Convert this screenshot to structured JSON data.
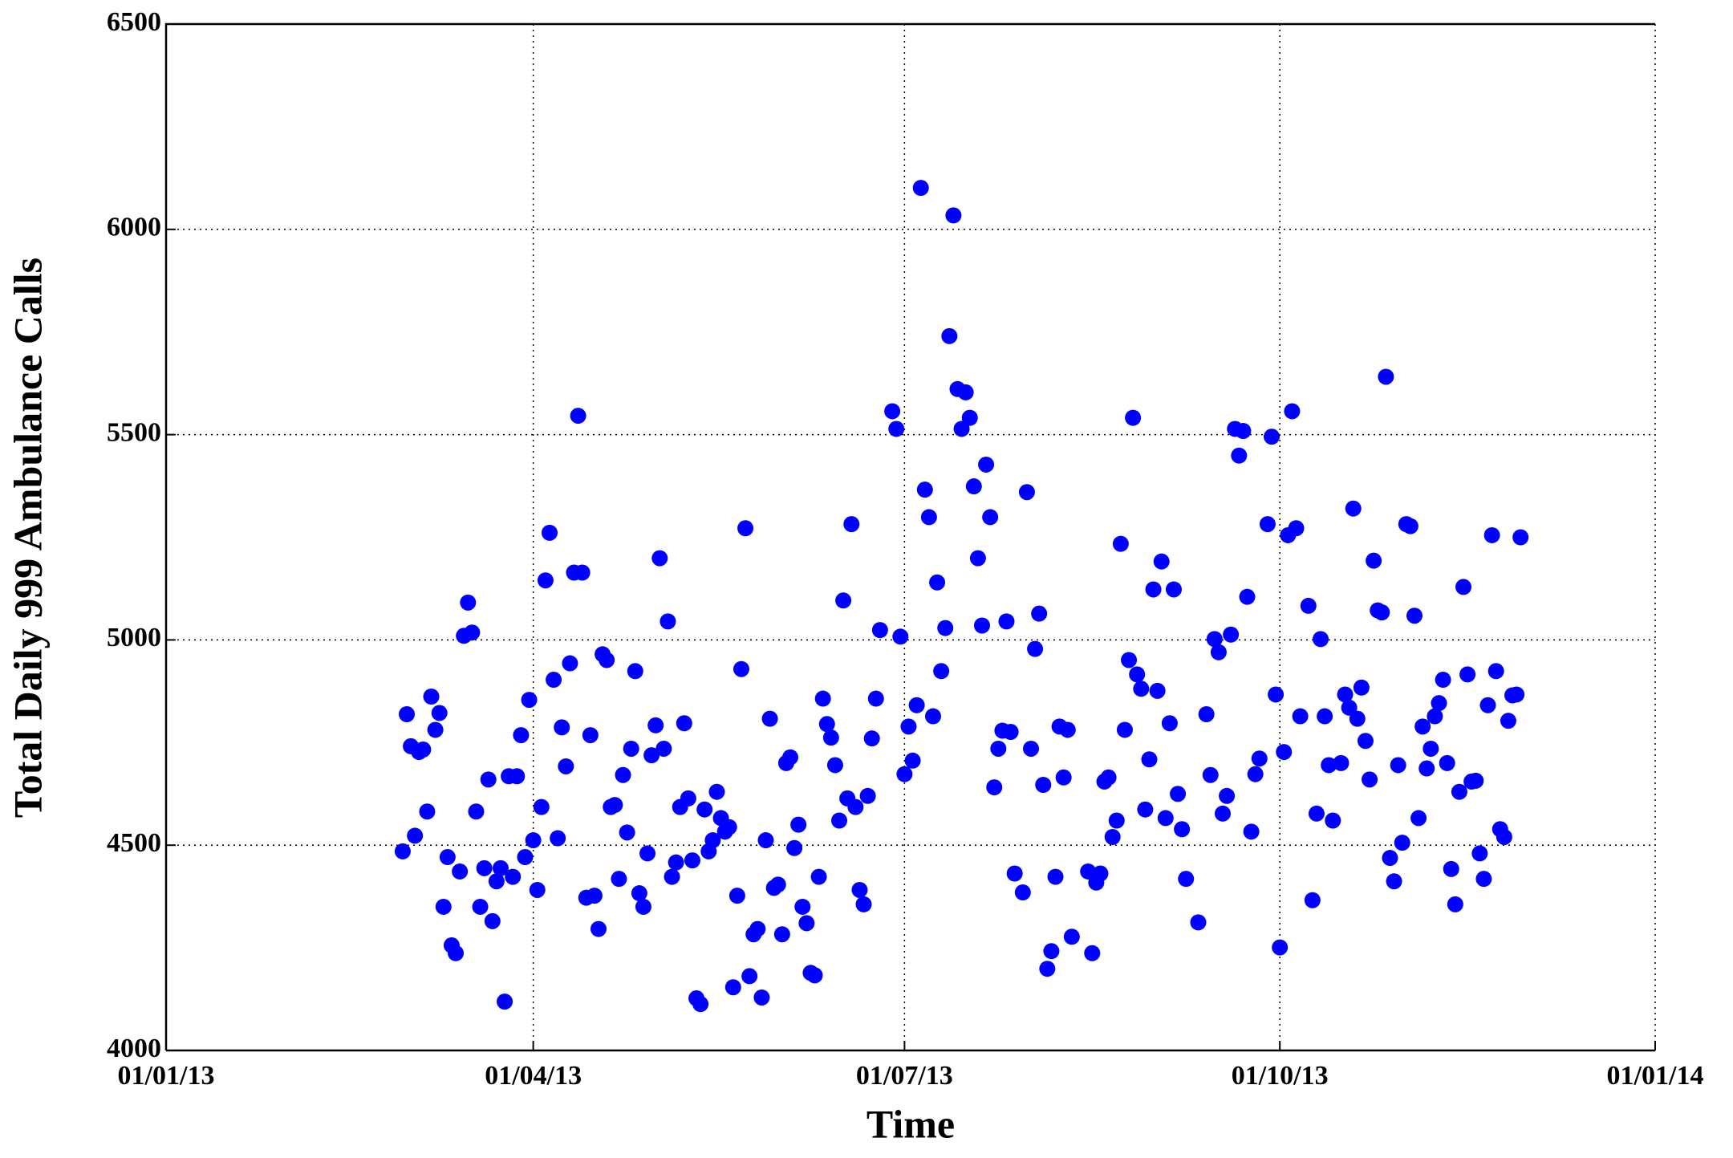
{
  "chart_data": {
    "type": "scatter",
    "xlabel": "Time",
    "ylabel": "Total Daily 999 Ambulance Calls",
    "color": "#0000ff",
    "grid": true,
    "xlim": [
      "2013-01-01",
      "2014-01-01"
    ],
    "xticks": [
      {
        "value": "2013-01-01",
        "label": "01/01/13"
      },
      {
        "value": "2013-04-01",
        "label": "01/04/13"
      },
      {
        "value": "2013-07-01",
        "label": "01/07/13"
      },
      {
        "value": "2013-10-01",
        "label": "01/10/13"
      },
      {
        "value": "2014-01-01",
        "label": "01/01/14"
      }
    ],
    "ylim": [
      4000,
      6500
    ],
    "yticks": [
      4000,
      4500,
      5000,
      5500,
      6000,
      6500
    ],
    "x": [
      "2013-02-28",
      "2013-03-01",
      "2013-03-02",
      "2013-03-03",
      "2013-03-04",
      "2013-03-05",
      "2013-03-06",
      "2013-03-07",
      "2013-03-08",
      "2013-03-09",
      "2013-03-10",
      "2013-03-11",
      "2013-03-12",
      "2013-03-13",
      "2013-03-14",
      "2013-03-15",
      "2013-03-16",
      "2013-03-17",
      "2013-03-18",
      "2013-03-19",
      "2013-03-20",
      "2013-03-21",
      "2013-03-22",
      "2013-03-23",
      "2013-03-24",
      "2013-03-25",
      "2013-03-26",
      "2013-03-27",
      "2013-03-28",
      "2013-03-29",
      "2013-03-30",
      "2013-03-31",
      "2013-04-01",
      "2013-04-02",
      "2013-04-03",
      "2013-04-04",
      "2013-04-05",
      "2013-04-06",
      "2013-04-07",
      "2013-04-08",
      "2013-04-09",
      "2013-04-10",
      "2013-04-11",
      "2013-04-12",
      "2013-04-13",
      "2013-04-14",
      "2013-04-15",
      "2013-04-16",
      "2013-04-17",
      "2013-04-18",
      "2013-04-19",
      "2013-04-20",
      "2013-04-21",
      "2013-04-22",
      "2013-04-23",
      "2013-04-24",
      "2013-04-25",
      "2013-04-26",
      "2013-04-27",
      "2013-04-28",
      "2013-04-29",
      "2013-04-30",
      "2013-05-01",
      "2013-05-02",
      "2013-05-03",
      "2013-05-04",
      "2013-05-05",
      "2013-05-06",
      "2013-05-07",
      "2013-05-08",
      "2013-05-09",
      "2013-05-10",
      "2013-05-11",
      "2013-05-12",
      "2013-05-13",
      "2013-05-14",
      "2013-05-15",
      "2013-05-16",
      "2013-05-17",
      "2013-05-18",
      "2013-05-19",
      "2013-05-20",
      "2013-05-21",
      "2013-05-22",
      "2013-05-23",
      "2013-05-24",
      "2013-05-25",
      "2013-05-26",
      "2013-05-27",
      "2013-05-28",
      "2013-05-29",
      "2013-05-30",
      "2013-05-31",
      "2013-06-01",
      "2013-06-02",
      "2013-06-03",
      "2013-06-04",
      "2013-06-05",
      "2013-06-06",
      "2013-06-07",
      "2013-06-08",
      "2013-06-09",
      "2013-06-10",
      "2013-06-11",
      "2013-06-12",
      "2013-06-13",
      "2013-06-14",
      "2013-06-15",
      "2013-06-16",
      "2013-06-17",
      "2013-06-18",
      "2013-06-19",
      "2013-06-20",
      "2013-06-21",
      "2013-06-22",
      "2013-06-23",
      "2013-06-24",
      "2013-06-25",
      "2013-06-28",
      "2013-06-29",
      "2013-06-30",
      "2013-07-01",
      "2013-07-02",
      "2013-07-03",
      "2013-07-04",
      "2013-07-05",
      "2013-07-06",
      "2013-07-07",
      "2013-07-08",
      "2013-07-09",
      "2013-07-10",
      "2013-07-11",
      "2013-07-12",
      "2013-07-13",
      "2013-07-14",
      "2013-07-15",
      "2013-07-16",
      "2013-07-17",
      "2013-07-18",
      "2013-07-19",
      "2013-07-20",
      "2013-07-21",
      "2013-07-22",
      "2013-07-23",
      "2013-07-24",
      "2013-07-25",
      "2013-07-26",
      "2013-07-27",
      "2013-07-28",
      "2013-07-30",
      "2013-07-31",
      "2013-08-01",
      "2013-08-02",
      "2013-08-03",
      "2013-08-04",
      "2013-08-05",
      "2013-08-06",
      "2013-08-07",
      "2013-08-08",
      "2013-08-09",
      "2013-08-10",
      "2013-08-11",
      "2013-08-15",
      "2013-08-16",
      "2013-08-17",
      "2013-08-18",
      "2013-08-19",
      "2013-08-20",
      "2013-08-21",
      "2013-08-22",
      "2013-08-23",
      "2013-08-24",
      "2013-08-25",
      "2013-08-26",
      "2013-08-27",
      "2013-08-28",
      "2013-08-29",
      "2013-08-30",
      "2013-08-31",
      "2013-09-01",
      "2013-09-02",
      "2013-09-03",
      "2013-09-04",
      "2013-09-05",
      "2013-09-06",
      "2013-09-07",
      "2013-09-08",
      "2013-09-11",
      "2013-09-13",
      "2013-09-14",
      "2013-09-15",
      "2013-09-16",
      "2013-09-17",
      "2013-09-18",
      "2013-09-19",
      "2013-09-20",
      "2013-09-21",
      "2013-09-22",
      "2013-09-23",
      "2013-09-24",
      "2013-09-25",
      "2013-09-26",
      "2013-09-28",
      "2013-09-29",
      "2013-09-30",
      "2013-10-01",
      "2013-10-02",
      "2013-10-03",
      "2013-10-04",
      "2013-10-05",
      "2013-10-06",
      "2013-10-08",
      "2013-10-09",
      "2013-10-10",
      "2013-10-11",
      "2013-10-12",
      "2013-10-13",
      "2013-10-14",
      "2013-10-16",
      "2013-10-17",
      "2013-10-18",
      "2013-10-19",
      "2013-10-20",
      "2013-10-21",
      "2013-10-22",
      "2013-10-23",
      "2013-10-24",
      "2013-10-25",
      "2013-10-26",
      "2013-10-27",
      "2013-10-28",
      "2013-10-29",
      "2013-10-30",
      "2013-10-31",
      "2013-11-01",
      "2013-11-02",
      "2013-11-03",
      "2013-11-04",
      "2013-11-05",
      "2013-11-06",
      "2013-11-07",
      "2013-11-08",
      "2013-11-09",
      "2013-11-10",
      "2013-11-11",
      "2013-11-12",
      "2013-11-13",
      "2013-11-14",
      "2013-11-15",
      "2013-11-16",
      "2013-11-17",
      "2013-11-18",
      "2013-11-19",
      "2013-11-20",
      "2013-11-21",
      "2013-11-22",
      "2013-11-23",
      "2013-11-24",
      "2013-11-25",
      "2013-11-26",
      "2013-11-27",
      "2013-11-28",
      "2013-11-29"
    ],
    "values": [
      4485,
      4819,
      4741,
      4523,
      4727,
      4733,
      4582,
      4862,
      4781,
      4822,
      4350,
      4471,
      4256,
      4237,
      4436,
      5010,
      5091,
      5018,
      4582,
      4350,
      4444,
      4660,
      4315,
      4412,
      4444,
      4119,
      4668,
      4423,
      4668,
      4768,
      4471,
      4854,
      4512,
      4391,
      4593,
      5145,
      5261,
      4903,
      4517,
      4787,
      4692,
      4943,
      5164,
      5546,
      5164,
      4372,
      4768,
      4377,
      4296,
      4965,
      4951,
      4593,
      4598,
      4418,
      4671,
      4531,
      4735,
      4924,
      4383,
      4350,
      4480,
      4719,
      4792,
      5199,
      4735,
      5045,
      4423,
      4458,
      4593,
      4797,
      4614,
      4463,
      4127,
      4113,
      4587,
      4485,
      4512,
      4630,
      4566,
      4533,
      4544,
      4154,
      4377,
      4929,
      5272,
      4181,
      4283,
      4296,
      4129,
      4512,
      4808,
      4396,
      4404,
      4283,
      4700,
      4714,
      4493,
      4550,
      4350,
      4310,
      4189,
      4183,
      4423,
      4857,
      4795,
      4762,
      4695,
      4560,
      5096,
      4614,
      5282,
      4593,
      4391,
      4356,
      4620,
      4760,
      4857,
      5024,
      5557,
      5514,
      5008,
      4673,
      4789,
      4706,
      4841,
      6101,
      5366,
      5299,
      4814,
      5140,
      4924,
      5029,
      5740,
      6034,
      5611,
      5514,
      5603,
      5541,
      5374,
      5199,
      5035,
      5427,
      5299,
      4641,
      4735,
      4779,
      5045,
      4776,
      4431,
      4385,
      5360,
      4735,
      4978,
      5064,
      4647,
      4199,
      4242,
      4423,
      4789,
      4665,
      4781,
      4277,
      4436,
      4237,
      4409,
      4431,
      4655,
      4665,
      4520,
      4560,
      5234,
      4781,
      4951,
      5541,
      4916,
      4881,
      4587,
      4709,
      5123,
      4876,
      5191,
      4566,
      4797,
      5123,
      4625,
      4539,
      4418,
      4312,
      4819,
      4671,
      5002,
      4970,
      4577,
      4620,
      5013,
      5514,
      5449,
      5509,
      5105,
      4533,
      4673,
      4711,
      5282,
      5495,
      4867,
      4251,
      4727,
      5255,
      5557,
      5272,
      4814,
      5083,
      4366,
      4577,
      5002,
      4814,
      4695,
      4560,
      4700,
      4867,
      4835,
      5320,
      4808,
      4884,
      4754,
      4660,
      5193,
      5072,
      5067,
      5641,
      4469,
      4412,
      4695,
      4506,
      5282,
      5277,
      5059,
      4566,
      4789,
      4687,
      4735,
      4814,
      4846,
      4903,
      4700,
      4442,
      4356,
      4630,
      5129,
      4916,
      4655,
      4657,
      4480,
      4418,
      4841,
      5255,
      4924,
      4539,
      4520,
      4803,
      4865,
      4867,
      5250
    ]
  }
}
